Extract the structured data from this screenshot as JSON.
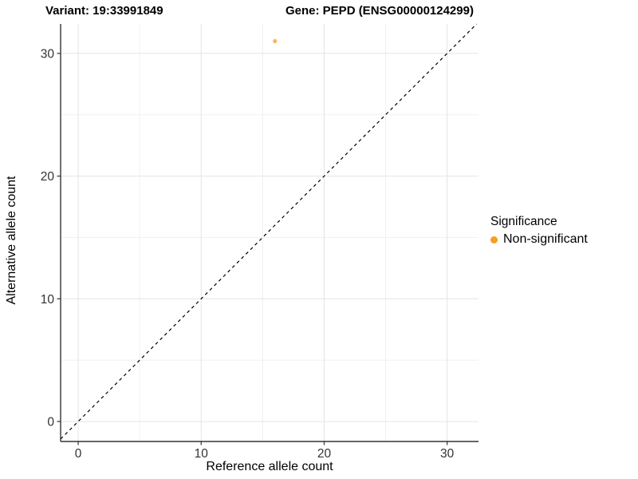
{
  "header": {
    "variant_title": "Variant: 19:33991849",
    "gene_title": "Gene: PEPD (ENSG00000124299)"
  },
  "chart_data": {
    "type": "scatter",
    "title_left": "Variant: 19:33991849",
    "title_right": "Gene: PEPD (ENSG00000124299)",
    "xlabel": "Reference allele count",
    "ylabel": "Alternative allele count",
    "xlim": [
      -1.43,
      32.55
    ],
    "ylim": [
      -1.63,
      32.4
    ],
    "xticks": [
      0,
      10,
      20,
      30
    ],
    "yticks": [
      0,
      10,
      20,
      30
    ],
    "xminor": [
      5,
      15,
      25
    ],
    "yminor": [
      5,
      15,
      25
    ],
    "grid": true,
    "points": [
      {
        "x": 16,
        "y": 31,
        "series": "Non-significant"
      }
    ],
    "series": [
      {
        "name": "Non-significant",
        "color": "#F99C20",
        "point_opacity": 0.75
      }
    ],
    "identity_line": {
      "slope": 1,
      "intercept": 0,
      "style": "dashed",
      "color": "#000000"
    },
    "legend": {
      "title": "Significance",
      "position": "right",
      "entries": [
        {
          "label": "Non-significant",
          "color": "#F99C20"
        }
      ]
    },
    "colors": {
      "axis_line": "#333333",
      "tick_label": "#333333",
      "grid_major": "#e4e4e4",
      "grid_minor": "#f0f0f0",
      "background": "#ffffff"
    }
  }
}
